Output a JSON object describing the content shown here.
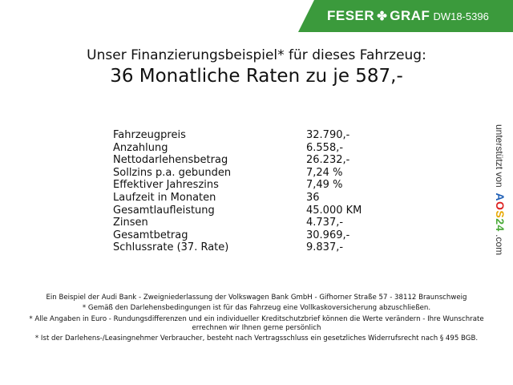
{
  "header": {
    "brand_left": "FESER",
    "brand_right": "GRAF",
    "brand_icon": "clover-icon",
    "code": "DW18-5396",
    "banner_color": "#3b9a3c"
  },
  "title": {
    "line1": "Unser Finanzierungsbeispiel* für dieses Fahrzeug:",
    "line2": "36 Monatliche Raten zu je 587,-"
  },
  "rows": [
    {
      "label": "Fahrzeugpreis",
      "value": "32.790,-"
    },
    {
      "label": "Anzahlung",
      "value": "6.558,-"
    },
    {
      "label": "Nettodarlehensbetrag",
      "value": "26.232,-"
    },
    {
      "label": "Sollzins p.a. gebunden",
      "value": "7,24 %"
    },
    {
      "label": "Effektiver Jahreszins",
      "value": "7,49 %"
    },
    {
      "label": "Laufzeit in Monaten",
      "value": "36"
    },
    {
      "label": "Gesamtlaufleistung",
      "value": "45.000 KM"
    },
    {
      "label": "Zinsen",
      "value": "4.737,-"
    },
    {
      "label": "Gesamtbetrag",
      "value": "30.969,-"
    },
    {
      "label": "Schlussrate (37. Rate)",
      "value": "9.837,-"
    }
  ],
  "side": {
    "text": "unterstützt von",
    "logo": "AOS24",
    "suffix": ".com"
  },
  "footer": [
    "Ein Beispiel der Audi Bank - Zweigniederlassung der Volkswagen Bank GmbH - Gifhorner Straße 57 - 38112 Braunschweig",
    "* Gemäß den Darlehensbedingungen ist für das Fahrzeug eine Vollkaskoversicherung abzuschließen.",
    "* Alle Angaben in Euro - Rundungsdifferenzen und ein individueller Kreditschutzbrief können die Werte verändern - Ihre Wunschrate errechnen wir Ihnen gerne persönlich",
    "* Ist der Darlehens-/Leasingnehmer Verbraucher, besteht nach Vertragsschluss ein gesetzliches Widerrufsrecht nach § 495 BGB."
  ]
}
